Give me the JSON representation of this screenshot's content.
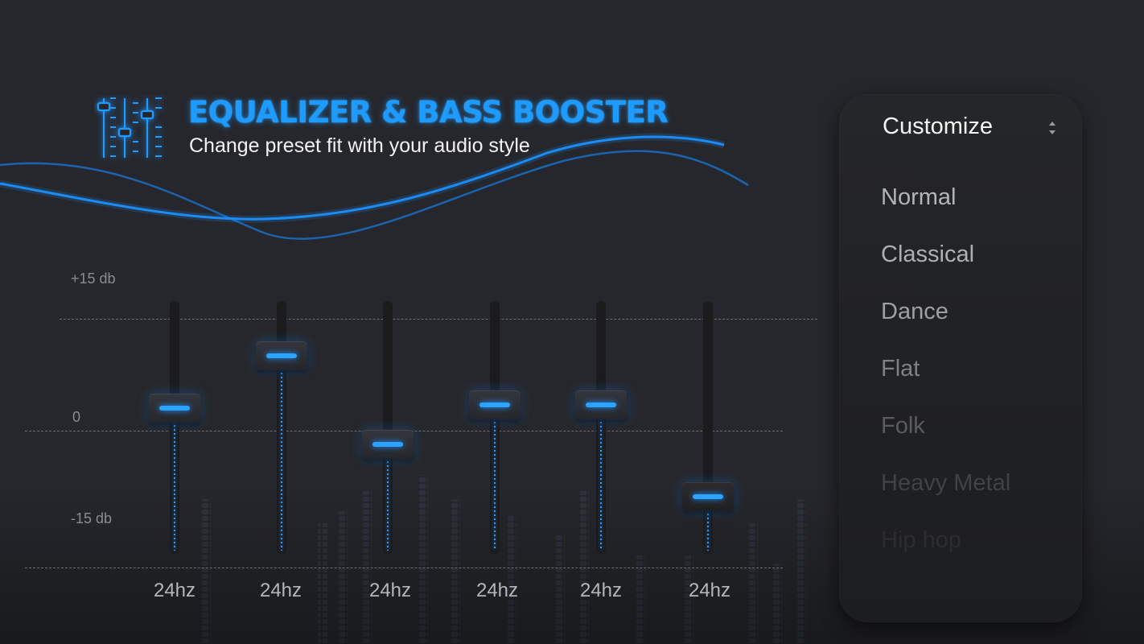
{
  "header": {
    "logo_icon": "equalizer-sliders-icon",
    "title": "EQUALIZER & BASS BOOSTER",
    "subtitle": "Change preset fit with your audio style"
  },
  "scale": {
    "top_label": "+15 db",
    "mid_label": "0",
    "bottom_label": "-15 db"
  },
  "bands": [
    {
      "label": "24hz",
      "level_percent": 58
    },
    {
      "label": "24hz",
      "level_percent": 79
    },
    {
      "label": "24hz",
      "level_percent": 43
    },
    {
      "label": "24hz",
      "level_percent": 59
    },
    {
      "label": "24hz",
      "level_percent": 59
    },
    {
      "label": "24hz",
      "level_percent": 22
    }
  ],
  "preset_menu": {
    "selected": "Customize",
    "selector_icon": "up-down-arrows-icon",
    "options": [
      "Normal",
      "Classical",
      "Dance",
      "Flat",
      "Folk",
      "Heavy Metal",
      "Hip hop"
    ]
  },
  "colors": {
    "accent": "#1e9bff",
    "background": "#26272c",
    "panel": "#212226"
  }
}
